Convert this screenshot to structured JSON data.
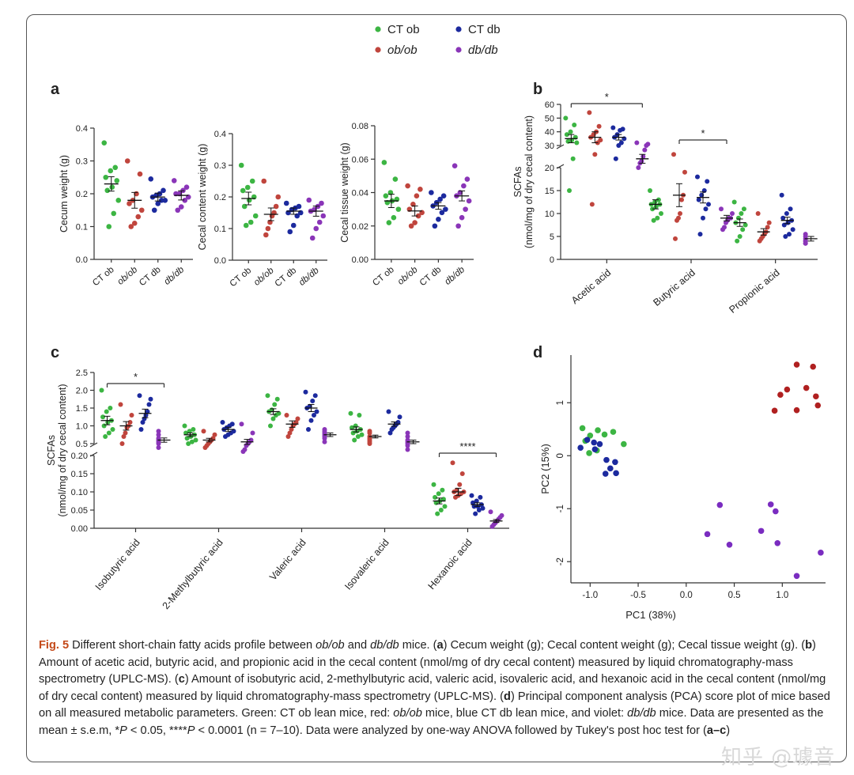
{
  "legend": {
    "items": [
      {
        "label": "CT ob",
        "color": "#3cb543"
      },
      {
        "label": "CT db",
        "color": "#1c2a9e"
      },
      {
        "label": "ob/ob",
        "color": "#c0453d"
      },
      {
        "label": "db/db",
        "color": "#8a35b8"
      }
    ]
  },
  "colors": {
    "ctob": "#3cb543",
    "obob": "#c0453d",
    "ctdb": "#1c2a9e",
    "dbdb": "#8a35b8"
  },
  "panel_labels": {
    "a": "a",
    "b": "b",
    "c": "c",
    "d": "d"
  },
  "chart_data": [
    {
      "id": "a1",
      "type": "scatter",
      "ylabel": "Cecum weight (g)",
      "ylim": [
        0,
        0.4
      ],
      "yticks": [
        "0.0",
        "0.1",
        "0.2",
        "0.3",
        "0.4"
      ],
      "categories": [
        "CT ob",
        "ob/ob",
        "CT db",
        "db/db"
      ],
      "means": [
        0.23,
        0.18,
        0.19,
        0.195
      ],
      "sems": [
        0.022,
        0.024,
        0.012,
        0.014
      ],
      "points": [
        [
          0.355,
          0.28,
          0.27,
          0.25,
          0.24,
          0.22,
          0.21,
          0.18,
          0.14,
          0.1
        ],
        [
          0.3,
          0.26,
          0.2,
          0.18,
          0.17,
          0.15,
          0.13,
          0.11,
          0.1
        ],
        [
          0.245,
          0.21,
          0.2,
          0.195,
          0.19,
          0.18,
          0.18,
          0.17,
          0.15
        ],
        [
          0.24,
          0.22,
          0.21,
          0.2,
          0.2,
          0.19,
          0.18,
          0.16,
          0.15
        ]
      ]
    },
    {
      "id": "a2",
      "type": "scatter",
      "ylabel": "Cecal content weight (g)",
      "ylim": [
        0,
        0.4
      ],
      "yticks": [
        "0.0",
        "0.1",
        "0.2",
        "0.3",
        "0.4"
      ],
      "categories": [
        "CT ob",
        "ob/ob",
        "CT db",
        "db/db"
      ],
      "means": [
        0.195,
        0.145,
        0.155,
        0.155
      ],
      "sems": [
        0.02,
        0.02,
        0.01,
        0.016
      ],
      "points": [
        [
          0.3,
          0.25,
          0.23,
          0.22,
          0.2,
          0.19,
          0.17,
          0.14,
          0.12,
          0.11
        ],
        [
          0.25,
          0.2,
          0.17,
          0.15,
          0.14,
          0.12,
          0.1,
          0.08
        ],
        [
          0.18,
          0.17,
          0.165,
          0.16,
          0.15,
          0.15,
          0.14,
          0.11,
          0.09
        ],
        [
          0.19,
          0.18,
          0.17,
          0.16,
          0.155,
          0.14,
          0.12,
          0.1,
          0.07
        ]
      ]
    },
    {
      "id": "a3",
      "type": "scatter",
      "ylabel": "Cecal tissue weight (g)",
      "ylim": [
        0,
        0.08
      ],
      "yticks": [
        "0.00",
        "0.02",
        "0.04",
        "0.06",
        "0.08"
      ],
      "categories": [
        "CT ob",
        "ob/ob",
        "CT db",
        "db/db"
      ],
      "means": [
        0.035,
        0.029,
        0.032,
        0.038
      ],
      "sems": [
        0.004,
        0.003,
        0.002,
        0.003
      ],
      "points": [
        [
          0.058,
          0.048,
          0.04,
          0.038,
          0.036,
          0.035,
          0.034,
          0.03,
          0.025,
          0.022
        ],
        [
          0.044,
          0.042,
          0.038,
          0.033,
          0.03,
          0.028,
          0.026,
          0.022,
          0.02
        ],
        [
          0.04,
          0.038,
          0.036,
          0.034,
          0.032,
          0.03,
          0.028,
          0.024,
          0.02
        ],
        [
          0.056,
          0.048,
          0.044,
          0.04,
          0.038,
          0.035,
          0.03,
          0.025,
          0.02
        ]
      ]
    },
    {
      "id": "b",
      "type": "scatter",
      "ylabel": "SCFAs",
      "ylabel2": "(nmol/mg of dry cecal content)",
      "ybreak": {
        "low": [
          0,
          20
        ],
        "high": [
          30,
          60
        ]
      },
      "yticks_low": [
        "0",
        "5",
        "10",
        "15",
        "20"
      ],
      "yticks_high": [
        "30",
        "40",
        "50",
        "60"
      ],
      "categories": [
        "Acetic acid",
        "Butyric acid",
        "Propionic acid"
      ],
      "groups": [
        "CT ob",
        "ob/ob",
        "CT db",
        "db/db"
      ],
      "means": [
        [
          35,
          36,
          36,
          24
        ],
        [
          12,
          14,
          13.5,
          9
        ],
        [
          8,
          6,
          8.5,
          4.5
        ]
      ],
      "sems": [
        [
          3,
          4,
          2,
          2
        ],
        [
          1,
          2.5,
          1.2,
          0.6
        ],
        [
          0.8,
          0.7,
          0.7,
          0.5
        ]
      ],
      "points": [
        [
          [
            50,
            45,
            40,
            38,
            36,
            34,
            33,
            32,
            24,
            15
          ],
          [
            54,
            44,
            40,
            38,
            36,
            34,
            32,
            26,
            12
          ],
          [
            43,
            42,
            41,
            38,
            36,
            35,
            32,
            30,
            24
          ],
          [
            32,
            31,
            30,
            28,
            25,
            23,
            22,
            20
          ]
        ],
        [
          [
            15,
            13,
            12.5,
            12,
            12,
            11.5,
            11,
            10,
            9,
            8.5
          ],
          [
            26,
            19,
            14,
            13,
            10,
            9,
            8.5,
            4.5
          ],
          [
            18,
            17,
            15,
            14,
            13,
            12,
            11,
            9,
            5.5
          ],
          [
            11,
            10,
            9,
            9,
            8.5,
            8,
            7,
            6.5
          ]
        ],
        [
          [
            12.5,
            11,
            10,
            9,
            8,
            7.5,
            6.5,
            5,
            4
          ],
          [
            10,
            8,
            7,
            6,
            5.5,
            5,
            4.5,
            4
          ],
          [
            14,
            11,
            10,
            9,
            8.5,
            8,
            7.5,
            6.5,
            5.5,
            5
          ],
          [
            5.5,
            5,
            4.5,
            4,
            4,
            3.5,
            3.5
          ]
        ]
      ],
      "significance": [
        {
          "label": "*",
          "from": "Acetic acid:CT ob",
          "to": "Acetic acid:db/db"
        },
        {
          "label": "*",
          "from": "Butyric acid:ob/ob",
          "to": "Butyric acid:db/db"
        }
      ]
    },
    {
      "id": "c",
      "type": "scatter",
      "ylabel": "SCFAs",
      "ylabel2": "(nmol/mg of dry cecal content)",
      "ybreak": {
        "low": [
          0,
          0.2
        ],
        "high": [
          0.5,
          2.5
        ]
      },
      "yticks_low": [
        "0.00",
        "0.05",
        "0.10",
        "0.15",
        "0.20"
      ],
      "yticks_high": [
        "0.5",
        "1.0",
        "1.5",
        "2.0",
        "2.5"
      ],
      "categories": [
        "Isobutyric acid",
        "2-Methylbutyric acid",
        "Valeric acid",
        "Isovaleric acid",
        "Hexanoic acid"
      ],
      "groups": [
        "CT ob",
        "ob/ob",
        "CT db",
        "db/db"
      ],
      "means": [
        [
          1.15,
          1.0,
          1.35,
          0.6
        ],
        [
          0.75,
          0.6,
          0.9,
          0.55
        ],
        [
          1.4,
          1.05,
          1.5,
          0.75
        ],
        [
          0.9,
          0.7,
          1.05,
          0.55
        ],
        [
          0.075,
          0.1,
          0.065,
          0.02
        ]
      ],
      "sems": [
        [
          0.12,
          0.12,
          0.12,
          0.06
        ],
        [
          0.05,
          0.05,
          0.06,
          0.07
        ],
        [
          0.08,
          0.09,
          0.1,
          0.05
        ],
        [
          0.07,
          0.04,
          0.06,
          0.05
        ],
        [
          0.008,
          0.01,
          0.005,
          0.004
        ]
      ],
      "points": [
        [
          [
            2.0,
            1.5,
            1.4,
            1.25,
            1.15,
            1.1,
            1.0,
            0.9,
            0.8,
            0.7
          ],
          [
            1.6,
            1.3,
            1.1,
            1.0,
            0.95,
            0.8,
            0.7,
            0.5
          ],
          [
            1.85,
            1.75,
            1.6,
            1.4,
            1.3,
            1.2,
            1.1,
            0.9
          ],
          [
            0.85,
            0.75,
            0.65,
            0.6,
            0.55,
            0.5,
            0.4
          ]
        ],
        [
          [
            1.0,
            0.9,
            0.85,
            0.8,
            0.75,
            0.7,
            0.65,
            0.6,
            0.55,
            0.5
          ],
          [
            0.85,
            0.75,
            0.65,
            0.6,
            0.55,
            0.5,
            0.45,
            0.4
          ],
          [
            1.1,
            1.05,
            1.0,
            0.95,
            0.9,
            0.85,
            0.8,
            0.75,
            0.7
          ],
          [
            1.05,
            0.8,
            0.6,
            0.55,
            0.5,
            0.45,
            0.35,
            0.3
          ]
        ],
        [
          [
            1.85,
            1.75,
            1.6,
            1.45,
            1.4,
            1.35,
            1.3,
            1.2,
            1.0
          ],
          [
            1.3,
            1.2,
            1.1,
            1.05,
            1.0,
            0.9,
            0.8,
            0.7
          ],
          [
            1.95,
            1.85,
            1.7,
            1.55,
            1.5,
            1.4,
            1.3,
            1.15,
            0.9
          ],
          [
            0.9,
            0.85,
            0.8,
            0.75,
            0.7,
            0.65,
            0.55
          ]
        ],
        [
          [
            1.35,
            1.3,
            1.0,
            0.95,
            0.9,
            0.85,
            0.8,
            0.75,
            0.7,
            0.6
          ],
          [
            0.85,
            0.8,
            0.7,
            0.65,
            0.6,
            0.55,
            0.5
          ],
          [
            1.4,
            1.25,
            1.1,
            1.05,
            1.0,
            0.95,
            0.9,
            0.8
          ],
          [
            0.8,
            0.7,
            0.6,
            0.55,
            0.5,
            0.45,
            0.35
          ]
        ],
        [
          [
            0.12,
            0.105,
            0.095,
            0.085,
            0.08,
            0.075,
            0.07,
            0.06,
            0.05,
            0.04
          ],
          [
            0.18,
            0.15,
            0.12,
            0.105,
            0.1,
            0.1,
            0.095,
            0.09,
            0.085
          ],
          [
            0.09,
            0.085,
            0.075,
            0.07,
            0.065,
            0.06,
            0.06,
            0.055,
            0.05,
            0.04
          ],
          [
            0.045,
            0.035,
            0.03,
            0.025,
            0.02,
            0.015,
            0.01,
            0.005
          ]
        ]
      ],
      "significance": [
        {
          "label": "*",
          "from": "Isobutyric acid:CT ob",
          "to": "Isobutyric acid:db/db"
        },
        {
          "label": "****",
          "from": "Hexanoic acid:CT ob",
          "to": "Hexanoic acid:db/db"
        }
      ]
    },
    {
      "id": "d",
      "type": "scatter",
      "xlabel": "PC1 (38%)",
      "ylabel": "PC2 (15%)",
      "xlim": [
        -1.2,
        1.45
      ],
      "ylim": [
        -2.4,
        1.9
      ],
      "xticks": [
        {
          "v": -1.0,
          "t": "-1.0"
        },
        {
          "v": -0.5,
          "t": "-0.5"
        },
        {
          "v": 0.0,
          "t": "0.0"
        },
        {
          "v": 0.5,
          "t": "0.5"
        },
        {
          "v": 1.0,
          "t": "1.0"
        }
      ],
      "yticks": [
        {
          "v": 1,
          "t": "1"
        },
        {
          "v": 0,
          "t": "0"
        },
        {
          "v": -1,
          "t": "-1"
        },
        {
          "v": -2,
          "t": "-2"
        }
      ],
      "series": [
        {
          "name": "CT ob",
          "color": "#3cb543",
          "points": [
            [
              -1.08,
              0.52
            ],
            [
              -0.92,
              0.48
            ],
            [
              -0.85,
              0.4
            ],
            [
              -1.0,
              0.38
            ],
            [
              -0.76,
              0.45
            ],
            [
              -0.65,
              0.22
            ],
            [
              -1.05,
              0.28
            ],
            [
              -0.93,
              0.1
            ],
            [
              -1.01,
              0.05
            ]
          ]
        },
        {
          "name": "CT db",
          "color": "#1c2a9e",
          "points": [
            [
              -1.1,
              0.15
            ],
            [
              -1.03,
              0.3
            ],
            [
              -0.96,
              0.25
            ],
            [
              -0.9,
              0.22
            ],
            [
              -0.95,
              0.12
            ],
            [
              -0.83,
              -0.08
            ],
            [
              -0.74,
              -0.12
            ],
            [
              -0.79,
              -0.24
            ],
            [
              -0.84,
              -0.34
            ],
            [
              -0.73,
              -0.33
            ]
          ]
        },
        {
          "name": "ob/ob",
          "color": "#b02020",
          "points": [
            [
              1.15,
              1.72
            ],
            [
              1.32,
              1.68
            ],
            [
              0.98,
              1.15
            ],
            [
              1.05,
              1.25
            ],
            [
              1.25,
              1.28
            ],
            [
              1.35,
              1.12
            ],
            [
              0.92,
              0.85
            ],
            [
              1.15,
              0.86
            ],
            [
              1.37,
              0.95
            ]
          ]
        },
        {
          "name": "db/db",
          "color": "#7a2cc0",
          "points": [
            [
              0.35,
              -0.93
            ],
            [
              0.88,
              -0.92
            ],
            [
              0.93,
              -1.05
            ],
            [
              0.22,
              -1.48
            ],
            [
              0.78,
              -1.42
            ],
            [
              0.45,
              -1.68
            ],
            [
              0.95,
              -1.65
            ],
            [
              1.4,
              -1.83
            ],
            [
              1.15,
              -2.27
            ]
          ]
        }
      ]
    }
  ],
  "caption": {
    "fig": "Fig. 5",
    "s1": " Different short-chain fatty acids profile between ",
    "obob": "ob/ob",
    "s2": " and ",
    "dbdb": "db/db",
    "s3": " mice. (",
    "a": "a",
    "s4": ") Cecum weight (g); Cecal content weight (g); Cecal tissue weight (g). (",
    "b": "b",
    "s5": ") Amount of acetic acid, butyric acid, and propionic acid in the cecal content (nmol/mg of dry cecal content) measured by liquid chromatography-mass spectrometry (UPLC-MS). (",
    "c": "c",
    "s6": ") Amount of isobutyric acid, 2-methylbutyric acid, valeric acid, isovaleric acid, and hexanoic acid in the cecal content (nmol/mg of dry cecal content) measured by liquid chromatography-mass spectrometry (UPLC-MS). (",
    "d": "d",
    "s7": ") Principal component analysis (PCA) score plot of mice based on all measured metabolic parameters. Green: CT ob lean mice, red: ",
    "obob2": "ob/ob",
    "s8": " mice, blue CT db lean mice, and violet: ",
    "dbdb2": "db/db",
    "s9": " mice. Data are presented as the mean ± s.e.m, *",
    "p1": "P",
    "s10": " < 0.05, ****",
    "p2": "P",
    "s11": " < 0.0001 (n = 7–10). Data were analyzed by one-way ANOVA followed by Tukey's post hoc test for (",
    "ac": "a–c",
    "s12": ")"
  },
  "watermark": "知乎 @璩音"
}
